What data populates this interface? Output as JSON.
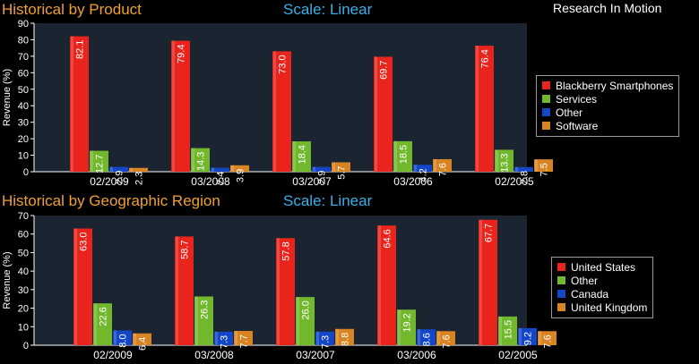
{
  "header": {
    "company": "Research In Motion"
  },
  "charts": [
    {
      "title": "Historical by Product",
      "scale_label": "Scale: Linear"
    },
    {
      "title": "Historical by Geographic Region",
      "scale_label": "Scale: Linear"
    }
  ],
  "colors": {
    "panel_background": "#1b2531",
    "red": "#e8241c",
    "green": "#72b82c",
    "blue": "#1446c8",
    "orange": "#d98422",
    "title": "#f0a030",
    "scale": "#3ab0e8"
  },
  "chart_data": [
    {
      "type": "bar",
      "title": "Historical by Product",
      "ylabel": "Revenue (%)",
      "xlabel": "",
      "ylim": [
        0,
        90
      ],
      "yticks": [
        0,
        10,
        20,
        30,
        40,
        50,
        60,
        70,
        80,
        90
      ],
      "categories": [
        "02/2009",
        "03/2008",
        "03/2007",
        "03/2006",
        "02/2005"
      ],
      "legend_position": "right",
      "series": [
        {
          "name": "Blackberry Smartphones",
          "color": "#e8241c",
          "values": [
            82.1,
            79.4,
            73.0,
            69.7,
            76.4
          ]
        },
        {
          "name": "Services",
          "color": "#72b82c",
          "values": [
            12.7,
            14.3,
            18.4,
            18.5,
            13.3
          ]
        },
        {
          "name": "Other",
          "color": "#1446c8",
          "values": [
            2.9,
            2.4,
            2.9,
            4.2,
            2.8
          ]
        },
        {
          "name": "Software",
          "color": "#d98422",
          "values": [
            2.3,
            3.9,
            5.7,
            7.6,
            7.5
          ]
        }
      ]
    },
    {
      "type": "bar",
      "title": "Historical by Geographic Region",
      "ylabel": "Revenue (%)",
      "xlabel": "",
      "ylim": [
        0,
        70
      ],
      "yticks": [
        0,
        10,
        20,
        30,
        40,
        50,
        60,
        70
      ],
      "categories": [
        "02/2009",
        "03/2008",
        "03/2007",
        "03/2006",
        "02/2005"
      ],
      "legend_position": "right",
      "series": [
        {
          "name": "United States",
          "color": "#e8241c",
          "values": [
            63.0,
            58.7,
            57.8,
            64.6,
            67.7
          ]
        },
        {
          "name": "Other",
          "color": "#72b82c",
          "values": [
            22.6,
            26.3,
            26.0,
            19.2,
            15.5
          ]
        },
        {
          "name": "Canada",
          "color": "#1446c8",
          "values": [
            8.0,
            7.3,
            7.3,
            8.6,
            9.2
          ]
        },
        {
          "name": "United Kingdom",
          "color": "#d98422",
          "values": [
            6.4,
            7.7,
            8.8,
            7.6,
            7.6
          ]
        }
      ]
    }
  ]
}
